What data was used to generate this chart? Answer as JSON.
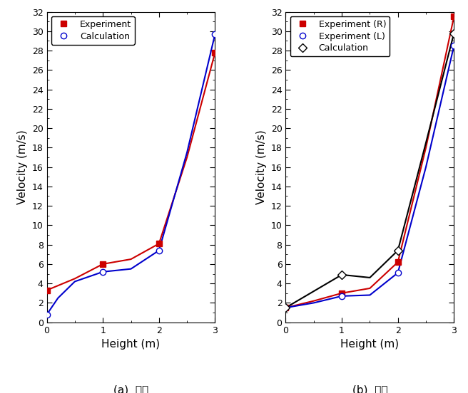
{
  "left": {
    "experiment_x": [
      0,
      0.5,
      1.0,
      1.5,
      2.0,
      2.5,
      3.0
    ],
    "experiment_y": [
      3.3,
      4.5,
      6.0,
      6.5,
      8.1,
      17.0,
      27.8
    ],
    "calculation_x": [
      0,
      0.2,
      0.5,
      1.0,
      1.5,
      2.0,
      2.5,
      3.0
    ],
    "calculation_y": [
      0.8,
      2.5,
      4.2,
      5.2,
      5.5,
      7.4,
      17.5,
      29.7
    ],
    "exp_color": "#cc0000",
    "calc_color": "#0000cc",
    "exp_label": "Experiment",
    "calc_label": "Calculation",
    "title": "(a)  중앙"
  },
  "right": {
    "exp_r_x": [
      0,
      0.5,
      1.0,
      1.5,
      2.0,
      2.5,
      3.0
    ],
    "exp_r_y": [
      1.5,
      2.2,
      3.0,
      3.5,
      6.2,
      18.0,
      31.5
    ],
    "exp_l_x": [
      0,
      0.5,
      1.0,
      1.5,
      2.0,
      2.5,
      3.0
    ],
    "exp_l_y": [
      1.5,
      2.0,
      2.7,
      2.8,
      5.1,
      16.0,
      28.5
    ],
    "calc_x": [
      0,
      0.5,
      1.0,
      1.5,
      2.0,
      2.5,
      3.0
    ],
    "calc_y": [
      1.5,
      3.2,
      4.9,
      4.6,
      7.4,
      18.5,
      29.8
    ],
    "exp_r_color": "#cc0000",
    "exp_l_color": "#0000cc",
    "calc_color": "#000000",
    "exp_r_label": "Experiment (R)",
    "exp_l_label": "Experiment (L)",
    "calc_label": "Calculation",
    "title": "(b)  측면"
  },
  "ylim": [
    0,
    32
  ],
  "yticks": [
    0,
    2,
    4,
    6,
    8,
    10,
    12,
    14,
    16,
    18,
    20,
    22,
    24,
    26,
    28,
    30,
    32
  ],
  "xlim": [
    0,
    3
  ],
  "xticks": [
    0,
    1,
    2,
    3
  ],
  "xlabel": "Height (m)",
  "ylabel": "Velocity (m/s)",
  "bg_color": "#ffffff",
  "tick_fontsize": 9,
  "label_fontsize": 11,
  "legend_fontsize": 9,
  "title_fontsize": 11
}
